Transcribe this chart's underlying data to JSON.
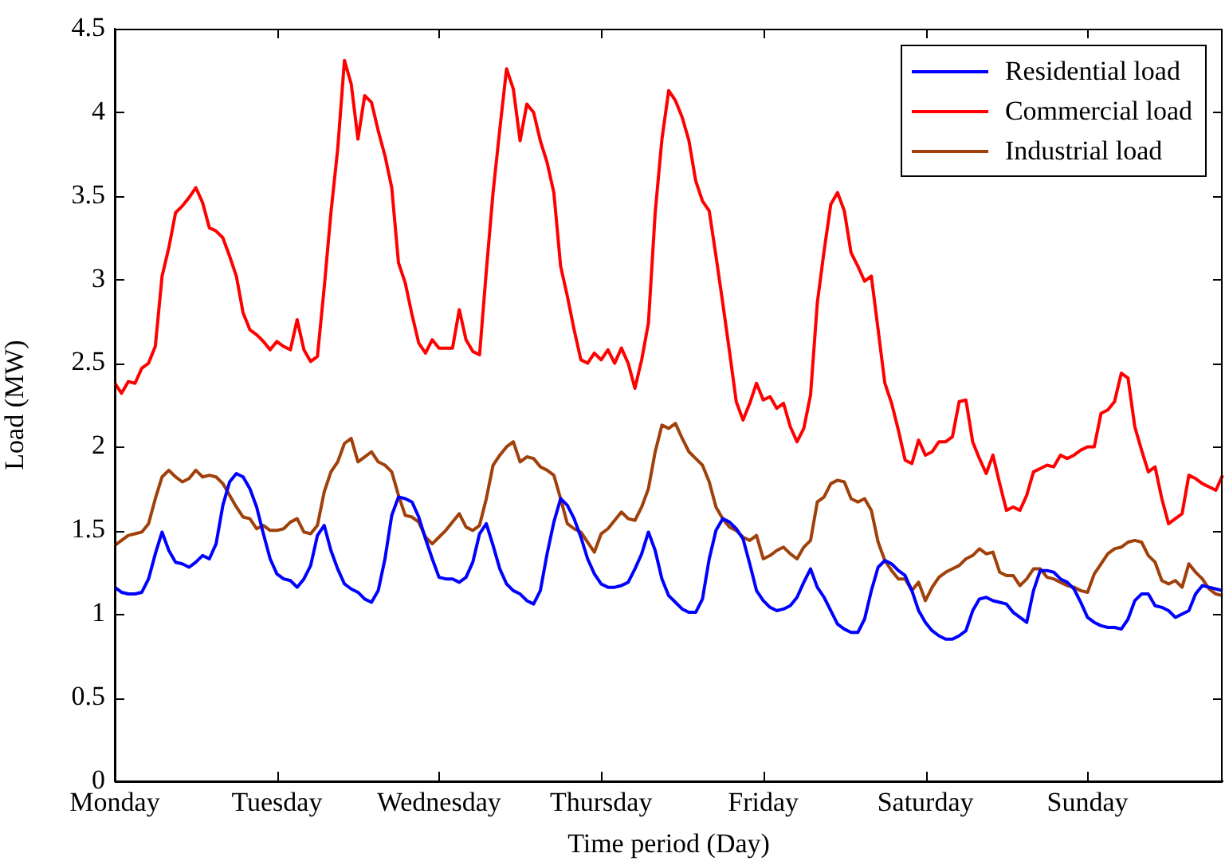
{
  "chart_data": {
    "type": "line",
    "xlabel": "Time period (Day)",
    "ylabel": "Load (MW)",
    "categories": [
      "Monday",
      null,
      null,
      null,
      null,
      null,
      null,
      null,
      null,
      null,
      null,
      null,
      null,
      null,
      null,
      null,
      null,
      null,
      null,
      null,
      null,
      null,
      null,
      null,
      "Tuesday",
      null,
      null,
      null,
      null,
      null,
      null,
      null,
      null,
      null,
      null,
      null,
      null,
      null,
      null,
      null,
      null,
      null,
      null,
      null,
      null,
      null,
      null,
      null,
      "Wednesday",
      null,
      null,
      null,
      null,
      null,
      null,
      null,
      null,
      null,
      null,
      null,
      null,
      null,
      null,
      null,
      null,
      null,
      null,
      null,
      null,
      null,
      null,
      null,
      "Thursday",
      null,
      null,
      null,
      null,
      null,
      null,
      null,
      null,
      null,
      null,
      null,
      null,
      null,
      null,
      null,
      null,
      null,
      null,
      null,
      null,
      null,
      null,
      null,
      "Friday",
      null,
      null,
      null,
      null,
      null,
      null,
      null,
      null,
      null,
      null,
      null,
      null,
      null,
      null,
      null,
      null,
      null,
      null,
      null,
      null,
      null,
      null,
      null,
      "Saturday",
      null,
      null,
      null,
      null,
      null,
      null,
      null,
      null,
      null,
      null,
      null,
      null,
      null,
      null,
      null,
      null,
      null,
      null,
      null,
      null,
      null,
      null,
      null,
      "Sunday",
      null,
      null,
      null,
      null,
      null,
      null,
      null,
      null,
      null,
      null,
      null,
      null,
      null,
      null,
      null,
      null,
      null,
      null,
      null,
      null
    ],
    "ylim": [
      0,
      4.5
    ],
    "yticks": [
      0,
      0.5,
      1,
      1.5,
      2,
      2.5,
      3,
      3.5,
      4,
      4.5
    ],
    "grid": false,
    "legend": "top right",
    "series": [
      {
        "name": "Residential load",
        "color": "#0000ff",
        "values": [
          1.16,
          1.13,
          1.12,
          1.12,
          1.13,
          1.21,
          1.36,
          1.49,
          1.38,
          1.31,
          1.3,
          1.28,
          1.31,
          1.35,
          1.33,
          1.42,
          1.65,
          1.79,
          1.84,
          1.82,
          1.75,
          1.64,
          1.48,
          1.33,
          1.24,
          1.21,
          1.2,
          1.16,
          1.21,
          1.29,
          1.47,
          1.53,
          1.38,
          1.27,
          1.18,
          1.15,
          1.13,
          1.09,
          1.07,
          1.14,
          1.33,
          1.59,
          1.7,
          1.69,
          1.67,
          1.58,
          1.45,
          1.33,
          1.22,
          1.21,
          1.21,
          1.19,
          1.22,
          1.31,
          1.48,
          1.54,
          1.41,
          1.27,
          1.18,
          1.14,
          1.12,
          1.08,
          1.06,
          1.14,
          1.36,
          1.55,
          1.69,
          1.65,
          1.57,
          1.46,
          1.33,
          1.24,
          1.18,
          1.16,
          1.16,
          1.17,
          1.19,
          1.27,
          1.36,
          1.49,
          1.38,
          1.21,
          1.11,
          1.07,
          1.03,
          1.01,
          1.01,
          1.09,
          1.33,
          1.5,
          1.57,
          1.55,
          1.51,
          1.45,
          1.3,
          1.14,
          1.08,
          1.04,
          1.02,
          1.03,
          1.05,
          1.1,
          1.19,
          1.27,
          1.16,
          1.1,
          1.02,
          0.94,
          0.91,
          0.89,
          0.89,
          0.97,
          1.14,
          1.28,
          1.32,
          1.3,
          1.26,
          1.23,
          1.14,
          1.02,
          0.95,
          0.9,
          0.87,
          0.85,
          0.85,
          0.87,
          0.9,
          1.02,
          1.09,
          1.1,
          1.08,
          1.07,
          1.06,
          1.01,
          0.98,
          0.95,
          1.14,
          1.26,
          1.26,
          1.25,
          1.21,
          1.19,
          1.15,
          1.07,
          0.98,
          0.95,
          0.93,
          0.92,
          0.92,
          0.91,
          0.97,
          1.08,
          1.12,
          1.12,
          1.05,
          1.04,
          1.02,
          0.98,
          1.0,
          1.02,
          1.12,
          1.17,
          1.16,
          1.15,
          1.14
        ]
      },
      {
        "name": "Commercial load",
        "color": "#ff0000",
        "values": [
          2.38,
          2.32,
          2.39,
          2.38,
          2.47,
          2.5,
          2.6,
          3.02,
          3.19,
          3.4,
          3.44,
          3.49,
          3.55,
          3.46,
          3.31,
          3.29,
          3.25,
          3.14,
          3.02,
          2.8,
          2.7,
          2.67,
          2.63,
          2.58,
          2.63,
          2.6,
          2.58,
          2.76,
          2.58,
          2.51,
          2.54,
          2.95,
          3.4,
          3.78,
          4.31,
          4.17,
          3.84,
          4.1,
          4.06,
          3.89,
          3.74,
          3.55,
          3.1,
          2.98,
          2.79,
          2.62,
          2.56,
          2.64,
          2.59,
          2.59,
          2.59,
          2.82,
          2.64,
          2.57,
          2.55,
          3.05,
          3.52,
          3.9,
          4.26,
          4.14,
          3.83,
          4.05,
          4.0,
          3.83,
          3.7,
          3.52,
          3.08,
          2.9,
          2.7,
          2.52,
          2.5,
          2.56,
          2.52,
          2.58,
          2.5,
          2.59,
          2.5,
          2.35,
          2.52,
          2.74,
          3.4,
          3.84,
          4.13,
          4.07,
          3.97,
          3.83,
          3.59,
          3.47,
          3.41,
          3.14,
          2.86,
          2.57,
          2.27,
          2.16,
          2.26,
          2.38,
          2.28,
          2.3,
          2.23,
          2.26,
          2.12,
          2.03,
          2.11,
          2.31,
          2.86,
          3.17,
          3.45,
          3.52,
          3.41,
          3.16,
          3.08,
          2.99,
          3.02,
          2.7,
          2.38,
          2.26,
          2.1,
          1.92,
          1.9,
          2.04,
          1.95,
          1.97,
          2.03,
          2.03,
          2.06,
          2.27,
          2.28,
          2.03,
          1.93,
          1.84,
          1.95,
          1.78,
          1.62,
          1.64,
          1.62,
          1.71,
          1.85,
          1.87,
          1.89,
          1.88,
          1.95,
          1.93,
          1.95,
          1.98,
          2.0,
          2.0,
          2.2,
          2.22,
          2.27,
          2.44,
          2.41,
          2.12,
          1.98,
          1.85,
          1.88,
          1.69,
          1.54,
          1.57,
          1.6,
          1.83,
          1.81,
          1.78,
          1.76,
          1.74,
          1.83
        ]
      },
      {
        "name": "Industrial load",
        "color": "#a0400a",
        "values": [
          1.41,
          1.44,
          1.47,
          1.48,
          1.49,
          1.54,
          1.69,
          1.82,
          1.86,
          1.82,
          1.79,
          1.81,
          1.86,
          1.82,
          1.83,
          1.82,
          1.78,
          1.71,
          1.64,
          1.58,
          1.57,
          1.51,
          1.53,
          1.5,
          1.5,
          1.51,
          1.55,
          1.57,
          1.49,
          1.48,
          1.53,
          1.73,
          1.85,
          1.91,
          2.02,
          2.05,
          1.91,
          1.94,
          1.97,
          1.91,
          1.89,
          1.85,
          1.71,
          1.59,
          1.58,
          1.55,
          1.46,
          1.42,
          1.46,
          1.5,
          1.55,
          1.6,
          1.52,
          1.5,
          1.53,
          1.69,
          1.89,
          1.95,
          2.0,
          2.03,
          1.91,
          1.94,
          1.93,
          1.88,
          1.86,
          1.83,
          1.69,
          1.54,
          1.51,
          1.49,
          1.43,
          1.37,
          1.48,
          1.51,
          1.56,
          1.61,
          1.57,
          1.56,
          1.64,
          1.75,
          1.97,
          2.13,
          2.11,
          2.14,
          2.05,
          1.97,
          1.93,
          1.89,
          1.79,
          1.64,
          1.57,
          1.52,
          1.5,
          1.46,
          1.44,
          1.47,
          1.33,
          1.35,
          1.38,
          1.4,
          1.36,
          1.33,
          1.4,
          1.44,
          1.67,
          1.7,
          1.78,
          1.8,
          1.79,
          1.69,
          1.67,
          1.69,
          1.62,
          1.43,
          1.32,
          1.26,
          1.21,
          1.21,
          1.14,
          1.19,
          1.08,
          1.16,
          1.22,
          1.25,
          1.27,
          1.29,
          1.33,
          1.35,
          1.39,
          1.36,
          1.37,
          1.25,
          1.23,
          1.23,
          1.17,
          1.21,
          1.27,
          1.27,
          1.22,
          1.21,
          1.19,
          1.17,
          1.16,
          1.14,
          1.13,
          1.24,
          1.3,
          1.36,
          1.39,
          1.4,
          1.43,
          1.44,
          1.43,
          1.35,
          1.31,
          1.2,
          1.18,
          1.2,
          1.16,
          1.3,
          1.25,
          1.21,
          1.15,
          1.12,
          1.11
        ]
      }
    ]
  }
}
